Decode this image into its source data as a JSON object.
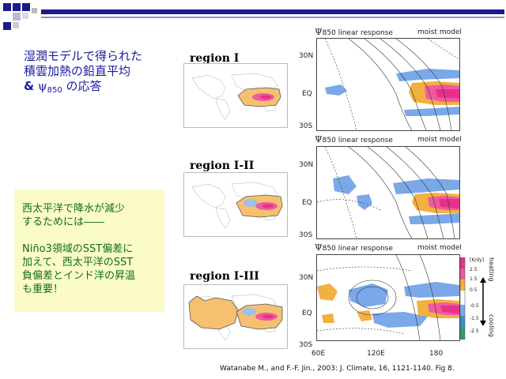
{
  "slide": {
    "title_line1": "湿潤モデルで得られた",
    "title_line2": "積雲加熱の鉛直平均",
    "title_line3_amp": "&",
    "title_line3_psi": "ψ",
    "title_line3_sub": "850",
    "title_line3_rest": " の応答",
    "note_line1": "西太平洋で降水が減少",
    "note_line2": "するためには――",
    "note_line3": "Niño3領域のSST偏差に",
    "note_line4": "加えて、西太平洋のSST",
    "note_line5": "負偏差とインド洋の昇温",
    "note_line6": "も重要！",
    "citation": "Watanabe M., and F.-F. Jin., 2003:  J. Climate, 16, 1121-1140. Fig 8."
  },
  "regions": [
    {
      "label": "region I"
    },
    {
      "label": "region I-II"
    },
    {
      "label": "region I-III"
    }
  ],
  "panels": {
    "psi": "Ψ",
    "header_left": "850 linear response",
    "header_right": "moist model",
    "lat_labels": [
      "30N",
      "EQ",
      "30S"
    ],
    "lon_labels": [
      "60E",
      "120E",
      "180"
    ]
  },
  "colorbar": {
    "unit": "[K/dy]",
    "ticks": [
      "2.5",
      "1.5",
      "0.5",
      "-0.5",
      "-1.5",
      "-2.5"
    ],
    "heating_label": "heating",
    "cooling_label": "cooling"
  },
  "colors": {
    "title_blue": "#1a1aa0",
    "note_green": "#107010",
    "note_bg": "#fbfbc8",
    "heating": "#f2b040",
    "strong_heating": "#e8308a",
    "cooling": "#7aa8e8"
  }
}
